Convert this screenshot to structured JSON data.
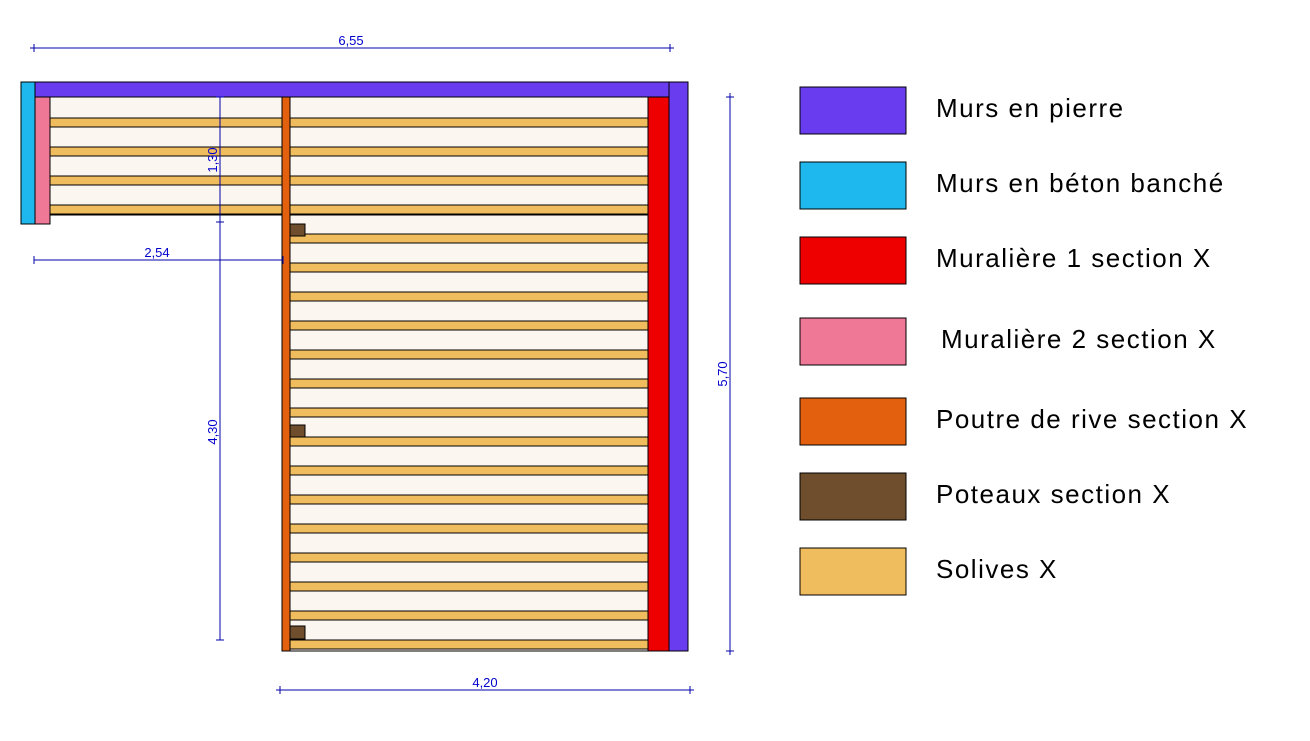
{
  "dimensions": {
    "top_width": "6,55",
    "left_span": "2,54",
    "bottom_width": "4,20",
    "right_height": "5,70",
    "upper_depth": "1,30",
    "lower_depth": "4,30"
  },
  "legend": [
    {
      "label": "Murs en pierre",
      "color": "#6a3cf0"
    },
    {
      "label": "Murs en béton banché",
      "color": "#1eb8ee"
    },
    {
      "label": "Muralière 1 section X",
      "color": "#ee0000"
    },
    {
      "label": "Muralière 2 section X",
      "color": "#ee7896"
    },
    {
      "label": "Poutre de rive section X",
      "color": "#e2600e"
    },
    {
      "label": "Poteaux section X",
      "color": "#6e4e2c"
    },
    {
      "label": "Solives X",
      "color": "#efbc5e"
    }
  ],
  "colors": {
    "floor": "#fbf6f0",
    "dimension_line": "#0000aa"
  }
}
